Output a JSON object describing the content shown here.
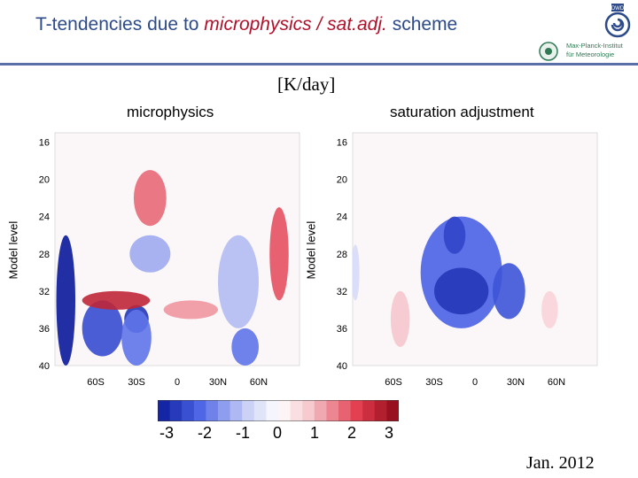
{
  "header": {
    "title_prefix": "T-tendencies due to ",
    "title_emphasis": "microphysics / sat.adj.",
    "title_suffix": " scheme",
    "logo_badge_text": "DWD",
    "logo_mpi_line1": "Max-Planck-Institut",
    "logo_mpi_line2": "für Meteorologie"
  },
  "units_label": "[K/day]",
  "date_label": "Jan. 2012",
  "colors": {
    "title": "#2d4a8a",
    "emphasis": "#b0102a",
    "strong_negative": "#0a1a9a",
    "mid_negative": "#4a62e6",
    "weak_negative": "#c8cff5",
    "neutral": "#ffffff",
    "weak_positive": "#f5c6cc",
    "mid_positive": "#e23a4c",
    "strong_positive": "#8a0a18"
  },
  "chart_data": [
    {
      "type": "heatmap",
      "title": "microphysics",
      "ylabel": "Model level",
      "xlabel": "",
      "x_ticks": [
        "60S",
        "30S",
        "0",
        "30N",
        "60N"
      ],
      "y_ticks": [
        "16",
        "20",
        "24",
        "28",
        "32",
        "36",
        "40"
      ],
      "x_range": [
        -90,
        90
      ],
      "y_range": [
        15,
        40
      ],
      "y_inverted": true,
      "features": [
        {
          "lat": -82,
          "level": 33,
          "value": -3.0,
          "lat_width": 14,
          "level_height": 14
        },
        {
          "lat": -55,
          "level": 36,
          "value": -2.3,
          "lat_width": 30,
          "level_height": 6
        },
        {
          "lat": -30,
          "level": 35,
          "value": -2.6,
          "lat_width": 18,
          "level_height": 3
        },
        {
          "lat": -30,
          "level": 37,
          "value": -1.8,
          "lat_width": 22,
          "level_height": 6
        },
        {
          "lat": -20,
          "level": 22,
          "value": 1.6,
          "lat_width": 24,
          "level_height": 6
        },
        {
          "lat": -20,
          "level": 28,
          "value": -1.2,
          "lat_width": 30,
          "level_height": 4
        },
        {
          "lat": -45,
          "level": 33,
          "value": 2.4,
          "lat_width": 50,
          "level_height": 2
        },
        {
          "lat": 10,
          "level": 34,
          "value": 1.2,
          "lat_width": 40,
          "level_height": 2
        },
        {
          "lat": 45,
          "level": 31,
          "value": -1.0,
          "lat_width": 30,
          "level_height": 10
        },
        {
          "lat": 50,
          "level": 38,
          "value": -1.8,
          "lat_width": 20,
          "level_height": 4
        },
        {
          "lat": 75,
          "level": 28,
          "value": 1.8,
          "lat_width": 14,
          "level_height": 10
        }
      ]
    },
    {
      "type": "heatmap",
      "title": "saturation adjustment",
      "ylabel": "Model level",
      "xlabel": "",
      "x_ticks": [
        "60S",
        "30S",
        "0",
        "30N",
        "60N"
      ],
      "y_ticks": [
        "16",
        "20",
        "24",
        "28",
        "32",
        "36",
        "40"
      ],
      "x_range": [
        -90,
        90
      ],
      "y_range": [
        15,
        40
      ],
      "y_inverted": true,
      "features": [
        {
          "lat": -10,
          "level": 30,
          "value": -2.0,
          "lat_width": 60,
          "level_height": 12
        },
        {
          "lat": -10,
          "level": 32,
          "value": -2.6,
          "lat_width": 40,
          "level_height": 5
        },
        {
          "lat": -15,
          "level": 26,
          "value": -2.4,
          "lat_width": 16,
          "level_height": 4
        },
        {
          "lat": 25,
          "level": 32,
          "value": -2.2,
          "lat_width": 24,
          "level_height": 6
        },
        {
          "lat": -55,
          "level": 35,
          "value": 0.8,
          "lat_width": 14,
          "level_height": 6
        },
        {
          "lat": 55,
          "level": 34,
          "value": 0.6,
          "lat_width": 12,
          "level_height": 4
        },
        {
          "lat": -88,
          "level": 30,
          "value": -0.6,
          "lat_width": 6,
          "level_height": 6
        }
      ]
    }
  ],
  "colorbar": {
    "range": [
      -3,
      3
    ],
    "tick_labels": [
      "-3",
      "-2",
      "-1",
      "0",
      "1",
      "2",
      "3"
    ]
  }
}
